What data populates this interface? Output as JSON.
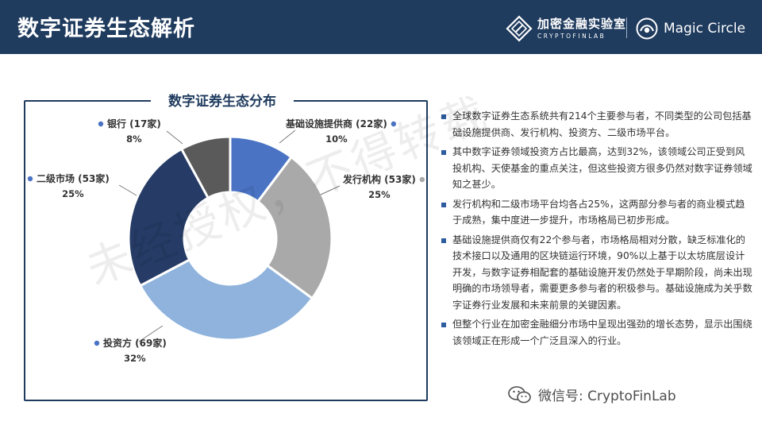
{
  "header": {
    "title": "数字证券生态解析",
    "logo1_cn": "加密金融实验室",
    "logo1_en": "CRYPTOFINLAB",
    "logo2": "Magic Circle"
  },
  "panel": {
    "title": "数字证券生态分布"
  },
  "colors": {
    "header_bg": "#1f3b5e",
    "slice_colors": [
      "#4a73c4",
      "#a9a9a9",
      "#8fb3dd",
      "#263c66",
      "#5a5a5a"
    ]
  },
  "chart_data": {
    "type": "pie",
    "variant": "donut",
    "title": "数字证券生态分布",
    "slices": [
      {
        "label": "基础设施提供商 (22家)",
        "value": 22,
        "percent_label": "10%"
      },
      {
        "label": "发行机构 (53家)",
        "value": 53,
        "percent_label": "25%"
      },
      {
        "label": "投资方 (69家)",
        "value": 69,
        "percent_label": "32%"
      },
      {
        "label": "二级市场 (53家)",
        "value": 53,
        "percent_label": "25%"
      },
      {
        "label": "银行 (17家)",
        "value": 17,
        "percent_label": "8%"
      }
    ]
  },
  "bullets": [
    "全球数字证券生态系统共有214个主要参与者，不同类型的公司包括基础设施提供商、发行机构、投资方、二级市场平台。",
    "其中数字证券领域投资方占比最高，达到32%，该领域公司正受到风投机构、天使基金的重点关注，但这些投资方很多仍然对数字证券领域知之甚少。",
    "发行机构和二级市场平台均各占25%，这两部分参与者的商业模式趋于成熟，集中度进一步提升，市场格局已初步形成。",
    "基础设施提供商仅有22个参与者，市场格局相对分散，缺乏标准化的技术接口以及通用的区块链运行环境，90%以上基于以太坊底层设计开发，与数字证券相配套的基础设施开发仍然处于早期阶段，尚未出现明确的市场领导者，需要更多参与者的积极参与。基础设施成为关乎数字证券行业发展和未来前景的关键因素。",
    "但整个行业在加密金融细分市场中呈现出强劲的增长态势，显示出围绕该领域正在形成一个广泛且深入的行业。"
  ],
  "watermark": "未经授权，不得转载",
  "footer": {
    "wechat": "微信号: CryptoFinLab"
  }
}
